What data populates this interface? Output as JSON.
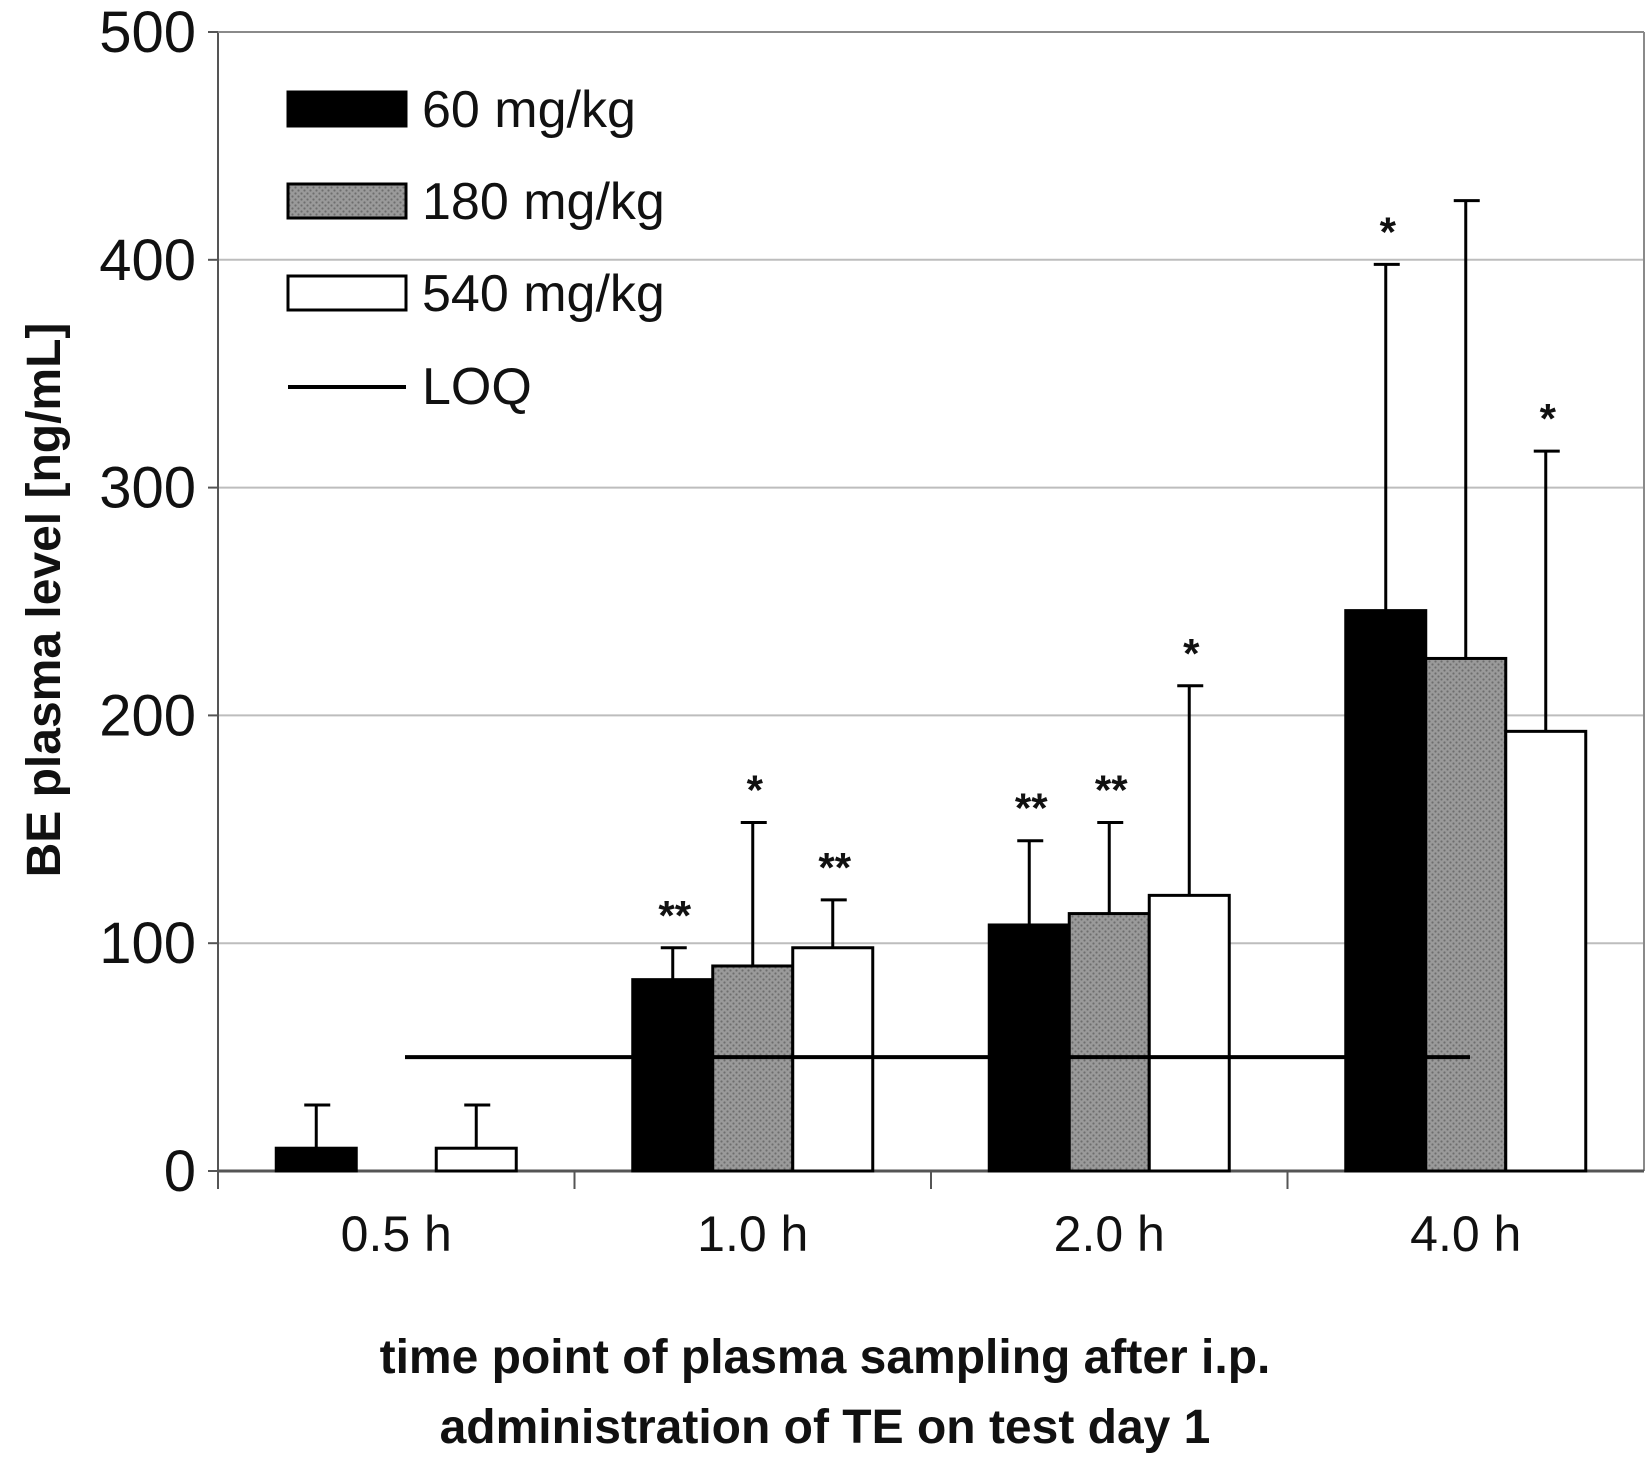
{
  "chart_data": {
    "type": "bar",
    "title": "",
    "ylabel": "BE plasma level [ng/mL]",
    "xlabel_lines": [
      "time point of plasma sampling after i.p.",
      "administration of TE on test day 1"
    ],
    "ylim": [
      0,
      500
    ],
    "yticks": [
      0,
      100,
      200,
      300,
      400,
      500
    ],
    "grid": true,
    "legend_position": "top-left",
    "categories": [
      "0.5 h",
      "1.0 h",
      "2.0 h",
      "4.0 h"
    ],
    "series": [
      {
        "name": "60 mg/kg",
        "color": "#000000",
        "fill": "solid",
        "values": [
          10,
          84,
          108,
          246
        ],
        "error": [
          19,
          14,
          37,
          152
        ],
        "significance": [
          "",
          "**",
          "**",
          "*"
        ]
      },
      {
        "name": "180 mg/kg",
        "color": "#8a8a8a",
        "fill": "dotted",
        "values": [
          0,
          90,
          113,
          225
        ],
        "error": [
          0,
          63,
          40,
          201
        ],
        "significance": [
          "",
          "*",
          "**",
          ""
        ]
      },
      {
        "name": "540 mg/kg",
        "color": "#ffffff",
        "fill": "hollow",
        "values": [
          10,
          98,
          121,
          193
        ],
        "error": [
          19,
          21,
          92,
          123
        ],
        "significance": [
          "",
          "**",
          "*",
          "*"
        ]
      }
    ],
    "reference_line": {
      "name": "LOQ",
      "value": 50
    }
  }
}
